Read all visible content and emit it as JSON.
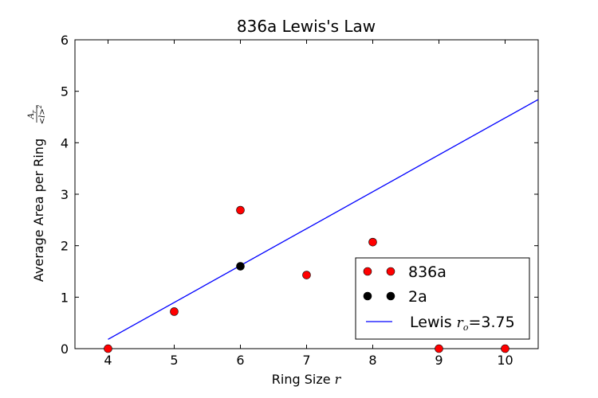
{
  "chart_data": {
    "type": "scatter",
    "title": "836a Lewis's Law",
    "xlabel_text": "Ring Size",
    "xlabel_var": "r",
    "ylabel_text": "Average Area per Ring",
    "ylabel_frac_num": "A",
    "ylabel_frac_num_sub": "r",
    "ylabel_frac_den": "<l>",
    "ylabel_frac_den_sup": "2",
    "xlim": [
      3.5,
      10.5
    ],
    "ylim": [
      0,
      6
    ],
    "xticks": [
      4,
      5,
      6,
      7,
      8,
      9,
      10
    ],
    "yticks": [
      0,
      1,
      2,
      3,
      4,
      5,
      6
    ],
    "grid": false,
    "legend_position": "bottom-right",
    "series": [
      {
        "name": "836a",
        "kind": "markers",
        "color": "#ff0000",
        "points": [
          {
            "x": 4,
            "y": 0
          },
          {
            "x": 5,
            "y": 0.72
          },
          {
            "x": 6,
            "y": 2.69
          },
          {
            "x": 7,
            "y": 1.43
          },
          {
            "x": 8,
            "y": 2.07
          },
          {
            "x": 9,
            "y": 0
          },
          {
            "x": 10,
            "y": 0
          }
        ]
      },
      {
        "name": "2a",
        "kind": "markers",
        "color": "#000000",
        "points": [
          {
            "x": 6,
            "y": 1.6
          }
        ]
      },
      {
        "name": "Lewis",
        "name_var": "r",
        "name_var_sub": "o",
        "name_suffix": "=3.75",
        "kind": "line",
        "color": "#0000ff",
        "points": [
          {
            "x": 4,
            "y": 0.18
          },
          {
            "x": 10.5,
            "y": 4.84
          }
        ]
      }
    ]
  }
}
